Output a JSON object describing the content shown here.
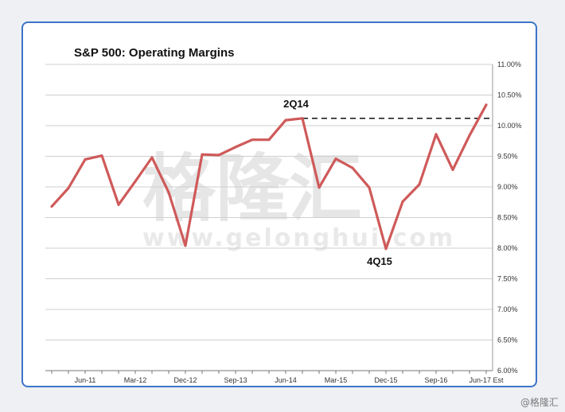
{
  "chart_data": {
    "type": "line",
    "title": "S&P 500: Operating Margins",
    "xlabel": "",
    "ylabel": "",
    "ylim": [
      6.0,
      11.0
    ],
    "y_ticks": [
      "6.00%",
      "6.50%",
      "7.00%",
      "7.50%",
      "8.00%",
      "8.50%",
      "9.00%",
      "9.50%",
      "10.00%",
      "10.50%",
      "11.00%"
    ],
    "x_tick_labels": [
      {
        "label": "Jun-11",
        "index": 2
      },
      {
        "label": "Mar-12",
        "index": 5
      },
      {
        "label": "Dec-12",
        "index": 8
      },
      {
        "label": "Sep-13",
        "index": 11
      },
      {
        "label": "Jun-14",
        "index": 14
      },
      {
        "label": "Mar-15",
        "index": 17
      },
      {
        "label": "Dec-15",
        "index": 20
      },
      {
        "label": "Sep-16",
        "index": 23
      },
      {
        "label": "Jun-17 Est",
        "index": 26
      }
    ],
    "series": [
      {
        "name": "Operating Margin",
        "color": "#cf5a5a",
        "values": [
          8.68,
          8.98,
          9.45,
          9.51,
          8.71,
          9.09,
          9.48,
          8.91,
          8.04,
          9.53,
          9.52,
          9.65,
          9.77,
          9.77,
          10.09,
          10.12,
          8.99,
          9.46,
          9.31,
          8.99,
          7.99,
          8.76,
          9.04,
          9.86,
          9.28,
          9.84,
          10.34
        ]
      }
    ],
    "reference_line": {
      "value": 10.12,
      "from_index": 15,
      "style": "dashed",
      "color": "#111111"
    },
    "annotations": [
      {
        "text": "2Q14",
        "index": 15
      },
      {
        "text": "4Q15",
        "index": 20
      }
    ],
    "grid": true,
    "legend": "none"
  },
  "watermark": {
    "cn": "格隆汇",
    "url": "www.gelonghui.com"
  },
  "credit": "@格隆汇"
}
